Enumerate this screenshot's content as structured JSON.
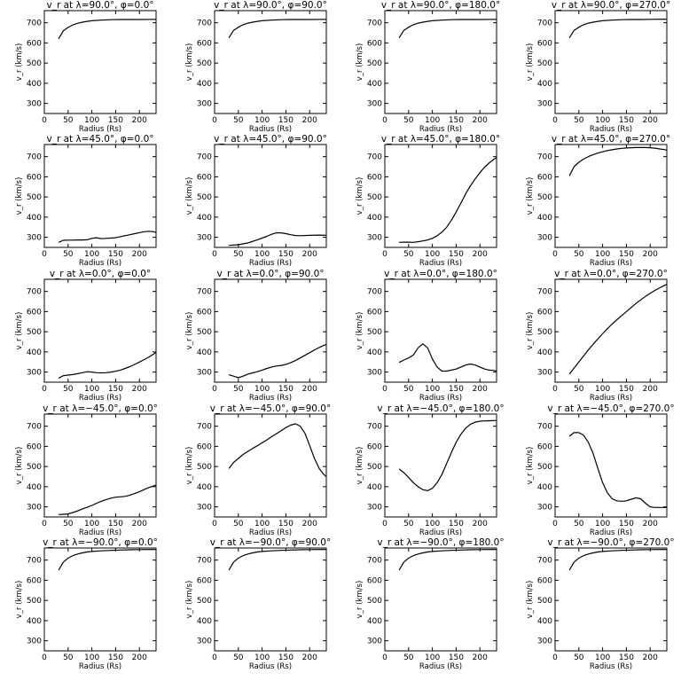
{
  "chart_data": {
    "type": "line",
    "layout": {
      "rows": 5,
      "cols": 4
    },
    "xlabel": "Radius (Rs)",
    "ylabel": "v_r (km/s)",
    "xlim": [
      0,
      235
    ],
    "ylim": [
      250,
      760
    ],
    "xticks": [
      0,
      50,
      100,
      150,
      200
    ],
    "yticks": [
      300,
      400,
      500,
      600,
      700
    ],
    "panels": [
      {
        "title": "v_r at λ=90.0°, φ=0.0°",
        "x": [
          30,
          40,
          50,
          60,
          70,
          80,
          90,
          100,
          120,
          140,
          160,
          180,
          200,
          235
        ],
        "y": [
          620,
          660,
          677,
          689,
          697,
          703,
          707,
          710,
          713,
          715,
          716,
          716,
          716,
          717
        ]
      },
      {
        "title": "v_r at λ=90.0°, φ=90.0°",
        "x": [
          30,
          40,
          50,
          60,
          70,
          80,
          90,
          100,
          120,
          140,
          160,
          180,
          200,
          235
        ],
        "y": [
          625,
          662,
          678,
          690,
          698,
          703,
          707,
          710,
          713,
          715,
          716,
          716,
          716,
          717
        ]
      },
      {
        "title": "v_r at λ=90.0°, φ=180.0°",
        "x": [
          30,
          40,
          50,
          60,
          70,
          80,
          90,
          100,
          120,
          140,
          160,
          180,
          200,
          235
        ],
        "y": [
          625,
          662,
          678,
          690,
          698,
          703,
          707,
          710,
          713,
          715,
          716,
          716,
          716,
          717
        ]
      },
      {
        "title": "v_r at λ=90.0°, φ=270.0°",
        "x": [
          30,
          40,
          50,
          60,
          70,
          80,
          90,
          100,
          120,
          140,
          160,
          180,
          200,
          235
        ],
        "y": [
          625,
          662,
          678,
          690,
          698,
          703,
          707,
          710,
          713,
          715,
          716,
          716,
          717,
          718
        ]
      },
      {
        "title": "v_r at λ=45.0°, φ=0.0°",
        "x": [
          30,
          40,
          50,
          60,
          70,
          80,
          90,
          100,
          110,
          120,
          130,
          140,
          150,
          160,
          170,
          180,
          190,
          200,
          210,
          220,
          230,
          235
        ],
        "y": [
          275,
          285,
          286,
          286,
          287,
          287,
          288,
          295,
          298,
          293,
          295,
          296,
          298,
          303,
          308,
          313,
          318,
          323,
          328,
          330,
          328,
          324
        ]
      },
      {
        "title": "v_r at λ=45.0°, φ=90.0°",
        "x": [
          30,
          50,
          70,
          90,
          110,
          120,
          130,
          140,
          150,
          160,
          170,
          180,
          200,
          220,
          235
        ],
        "y": [
          260,
          263,
          272,
          288,
          305,
          315,
          322,
          322,
          318,
          313,
          309,
          308,
          310,
          311,
          310
        ]
      },
      {
        "title": "v_r at λ=45.0°, φ=180.0°",
        "x": [
          30,
          40,
          50,
          60,
          70,
          80,
          90,
          100,
          110,
          120,
          130,
          140,
          150,
          160,
          170,
          180,
          190,
          200,
          210,
          220,
          230,
          235
        ],
        "y": [
          275,
          276,
          276,
          275,
          278,
          282,
          287,
          295,
          308,
          325,
          350,
          385,
          425,
          470,
          515,
          555,
          590,
          620,
          648,
          670,
          688,
          695
        ]
      },
      {
        "title": "v_r at λ=45.0°, φ=270.0°",
        "x": [
          30,
          40,
          50,
          60,
          70,
          80,
          90,
          100,
          110,
          120,
          130,
          140,
          150,
          160,
          170,
          180,
          190,
          200,
          210,
          220,
          230,
          235
        ],
        "y": [
          605,
          650,
          672,
          688,
          700,
          710,
          718,
          724,
          730,
          734,
          738,
          741,
          743,
          744,
          745,
          745,
          745,
          744,
          742,
          738,
          735,
          732
        ]
      },
      {
        "title": "v_r at λ=0.0°, φ=0.0°",
        "x": [
          30,
          40,
          50,
          60,
          70,
          80,
          90,
          100,
          110,
          120,
          130,
          140,
          150,
          160,
          170,
          180,
          190,
          200,
          210,
          220,
          230,
          235
        ],
        "y": [
          270,
          282,
          285,
          288,
          292,
          297,
          302,
          300,
          297,
          296,
          297,
          300,
          304,
          310,
          318,
          327,
          338,
          350,
          362,
          375,
          390,
          398
        ]
      },
      {
        "title": "v_r at λ=0.0°, φ=90.0°",
        "x": [
          30,
          40,
          45,
          50,
          60,
          70,
          80,
          90,
          100,
          110,
          120,
          130,
          140,
          150,
          160,
          170,
          180,
          190,
          200,
          210,
          220,
          230,
          235
        ],
        "y": [
          287,
          280,
          276,
          272,
          280,
          290,
          296,
          302,
          310,
          318,
          325,
          330,
          333,
          338,
          347,
          357,
          370,
          383,
          396,
          410,
          422,
          433,
          437
        ]
      },
      {
        "title": "v_r at λ=0.0°, φ=180.0°",
        "x": [
          30,
          40,
          50,
          60,
          70,
          80,
          90,
          100,
          110,
          120,
          130,
          140,
          150,
          160,
          170,
          180,
          190,
          200,
          210,
          220,
          230,
          235
        ],
        "y": [
          348,
          360,
          370,
          385,
          420,
          440,
          420,
          365,
          325,
          305,
          305,
          310,
          315,
          325,
          335,
          340,
          335,
          325,
          315,
          310,
          308,
          305
        ]
      },
      {
        "title": "v_r at λ=0.0°, φ=270.0°",
        "x": [
          30,
          40,
          50,
          60,
          70,
          80,
          90,
          100,
          110,
          120,
          130,
          140,
          150,
          160,
          170,
          180,
          190,
          200,
          210,
          220,
          230,
          235
        ],
        "y": [
          290,
          320,
          350,
          380,
          410,
          438,
          465,
          490,
          515,
          538,
          560,
          580,
          600,
          620,
          640,
          658,
          675,
          690,
          705,
          718,
          730,
          735
        ]
      },
      {
        "title": "v_r at λ=−45.0°, φ=0.0°",
        "x": [
          30,
          40,
          50,
          60,
          70,
          80,
          90,
          100,
          110,
          120,
          130,
          140,
          150,
          160,
          170,
          180,
          190,
          200,
          210,
          220,
          230,
          235
        ],
        "y": [
          262,
          263,
          265,
          272,
          280,
          290,
          298,
          307,
          318,
          328,
          336,
          343,
          348,
          350,
          352,
          358,
          366,
          375,
          386,
          396,
          404,
          408
        ]
      },
      {
        "title": "v_r at λ=−45.0°, φ=90.0°",
        "x": [
          30,
          40,
          50,
          60,
          70,
          80,
          90,
          100,
          110,
          120,
          130,
          140,
          150,
          160,
          170,
          180,
          190,
          200,
          210,
          220,
          230,
          235
        ],
        "y": [
          490,
          520,
          540,
          560,
          575,
          590,
          603,
          618,
          632,
          648,
          663,
          678,
          693,
          705,
          712,
          700,
          665,
          605,
          540,
          490,
          460,
          450
        ]
      },
      {
        "title": "v_r at λ=−45.0°, φ=180.0°",
        "x": [
          30,
          40,
          50,
          60,
          70,
          80,
          90,
          100,
          110,
          120,
          130,
          140,
          150,
          160,
          170,
          180,
          190,
          200,
          210,
          220,
          230,
          235
        ],
        "y": [
          488,
          470,
          445,
          420,
          400,
          385,
          380,
          392,
          420,
          460,
          515,
          570,
          620,
          660,
          690,
          710,
          720,
          725,
          726,
          727,
          728,
          728
        ]
      },
      {
        "title": "v_r at λ=−45.0°, φ=270.0°",
        "x": [
          30,
          40,
          50,
          60,
          70,
          80,
          90,
          100,
          110,
          120,
          130,
          140,
          150,
          160,
          170,
          180,
          190,
          200,
          210,
          220,
          230,
          235
        ],
        "y": [
          650,
          668,
          668,
          655,
          620,
          565,
          490,
          420,
          370,
          340,
          330,
          328,
          330,
          338,
          345,
          340,
          318,
          300,
          297,
          297,
          297,
          297
        ]
      },
      {
        "title": "v_r at λ=−90.0°, φ=0.0°",
        "x": [
          30,
          40,
          50,
          60,
          70,
          80,
          90,
          100,
          120,
          140,
          160,
          180,
          200,
          235
        ],
        "y": [
          650,
          690,
          710,
          722,
          730,
          736,
          740,
          743,
          746,
          748,
          750,
          751,
          752,
          753
        ]
      },
      {
        "title": "v_r at λ=−90.0°, φ=90.0°",
        "x": [
          30,
          40,
          50,
          60,
          70,
          80,
          90,
          100,
          120,
          140,
          160,
          180,
          200,
          235
        ],
        "y": [
          650,
          690,
          710,
          722,
          730,
          736,
          740,
          743,
          746,
          748,
          750,
          751,
          752,
          753
        ]
      },
      {
        "title": "v_r at λ=−90.0°, φ=180.0°",
        "x": [
          30,
          40,
          50,
          60,
          70,
          80,
          90,
          100,
          120,
          140,
          160,
          180,
          200,
          235
        ],
        "y": [
          650,
          690,
          710,
          722,
          730,
          736,
          740,
          743,
          746,
          748,
          750,
          751,
          752,
          753
        ]
      },
      {
        "title": "v_r at λ=−90.0°, φ=270.0°",
        "x": [
          30,
          40,
          50,
          60,
          70,
          80,
          90,
          100,
          120,
          140,
          160,
          180,
          200,
          235
        ],
        "y": [
          650,
          690,
          710,
          722,
          730,
          736,
          740,
          743,
          746,
          748,
          750,
          751,
          752,
          753
        ]
      }
    ]
  }
}
